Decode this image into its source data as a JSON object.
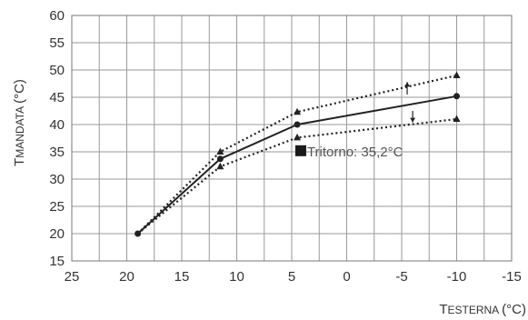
{
  "chart_data": {
    "type": "line",
    "title": "",
    "xlabel": {
      "main": "T",
      "sub": "ESTERNA",
      "unit": "(°C)"
    },
    "ylabel": {
      "main": "T",
      "sub": "MANDATA",
      "unit": "(°C)"
    },
    "xlim": [
      25,
      -15
    ],
    "ylim": [
      15,
      60
    ],
    "xticks": [
      25,
      20,
      15,
      10,
      5,
      0,
      -5,
      -10,
      -15
    ],
    "yticks": [
      15,
      20,
      25,
      30,
      35,
      40,
      45,
      50,
      55,
      60
    ],
    "x_minor_step": 2.5,
    "grid": true,
    "x_reversed": true,
    "series": [
      {
        "style": "solid",
        "marker": "circle",
        "color": "#222222",
        "points": [
          [
            19,
            20
          ],
          [
            11.5,
            33.7
          ],
          [
            4.5,
            40
          ],
          [
            -10,
            45.2
          ]
        ]
      },
      {
        "style": "dotted",
        "marker": "triangle",
        "color": "#222222",
        "points": [
          [
            19,
            20
          ],
          [
            11.5,
            35
          ],
          [
            4.5,
            42.3
          ],
          [
            -10,
            49
          ]
        ]
      },
      {
        "style": "dotted",
        "marker": "triangle",
        "color": "#222222",
        "points": [
          [
            19,
            20
          ],
          [
            11.5,
            32.3
          ],
          [
            4.5,
            37.6
          ],
          [
            -10,
            41
          ]
        ]
      }
    ],
    "arrows": [
      {
        "x": -5.5,
        "from": 45.5,
        "to": 47.8
      },
      {
        "x": -6,
        "from": 42.5,
        "to": 40.4
      }
    ],
    "annotation": {
      "text": "Tritorno: 35,2°C",
      "x": 3.6,
      "y": 35.2
    }
  }
}
